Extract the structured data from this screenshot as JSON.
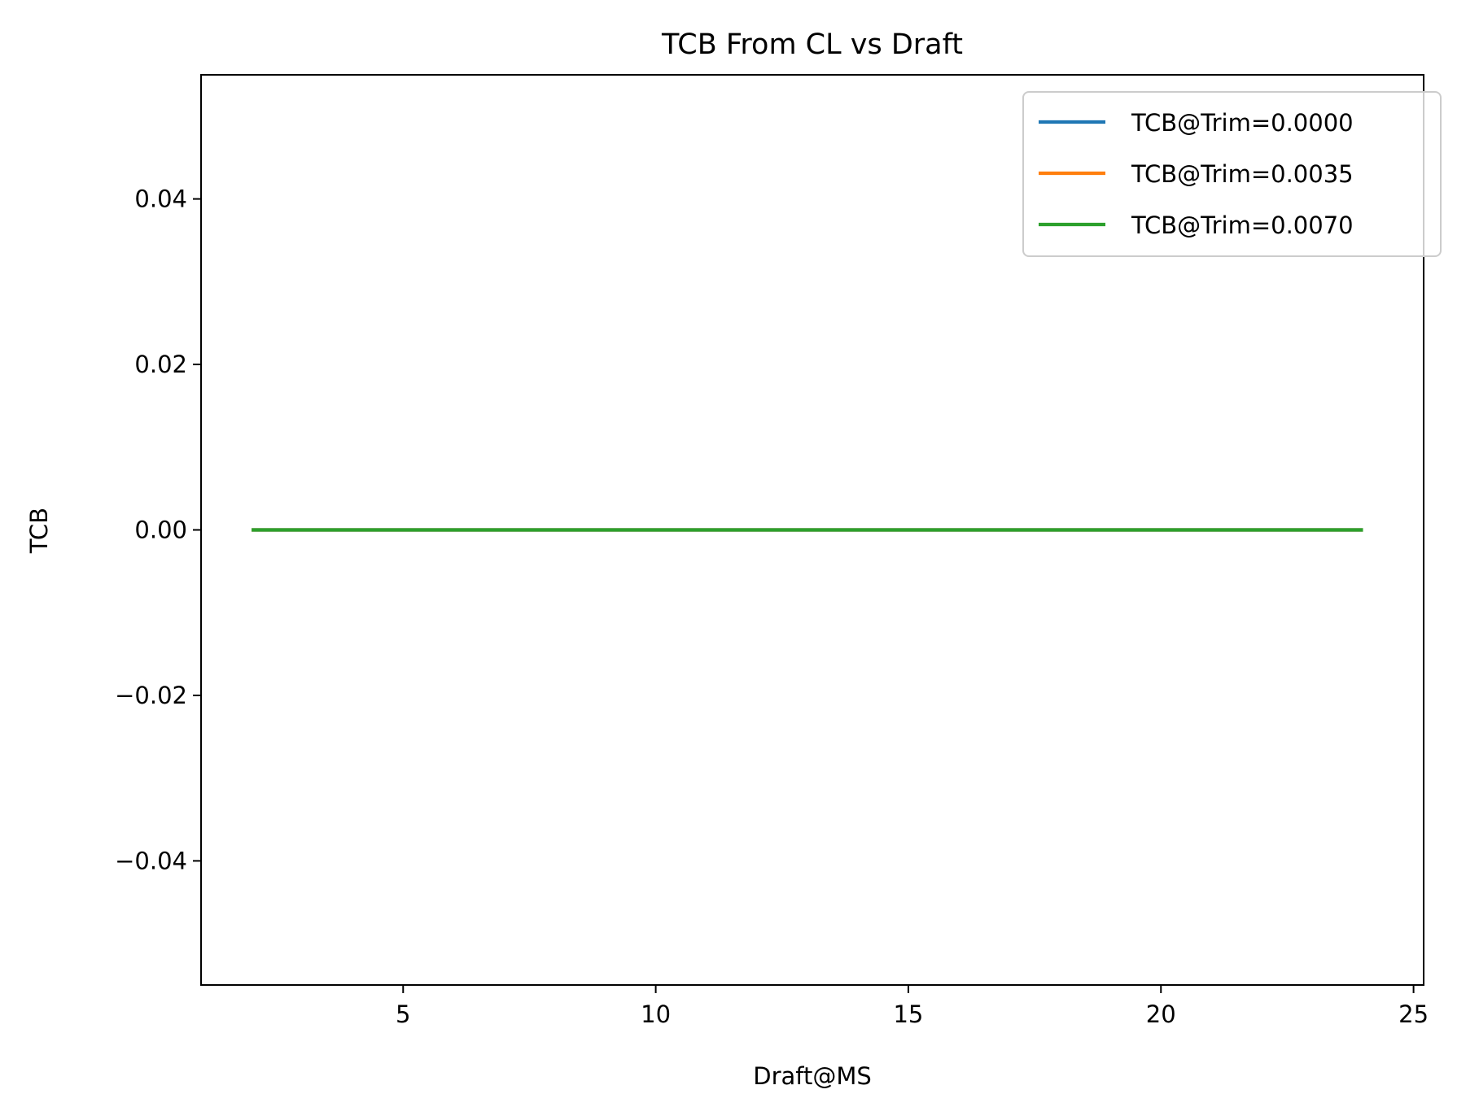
{
  "chart_data": {
    "type": "line",
    "title": "TCB From CL vs Draft",
    "xlabel": "Draft@MS",
    "ylabel": "TCB",
    "xlim": [
      1,
      25.2
    ],
    "ylim": [
      -0.055,
      0.055
    ],
    "xticks": [
      5,
      10,
      15,
      20,
      25
    ],
    "yticks": [
      -0.04,
      -0.02,
      0.0,
      0.02,
      0.04
    ],
    "xtick_labels": [
      "5",
      "10",
      "15",
      "20",
      "25"
    ],
    "ytick_labels": [
      "−0.04",
      "−0.02",
      "0.00",
      "0.02",
      "0.04"
    ],
    "grid": false,
    "legend_position": "top-right",
    "series": [
      {
        "name": "TCB@Trim=0.0000",
        "color": "#1f77b4",
        "x": [
          2,
          24
        ],
        "y": [
          0,
          0
        ]
      },
      {
        "name": "TCB@Trim=0.0035",
        "color": "#ff7f0e",
        "x": [
          2,
          24
        ],
        "y": [
          0,
          0
        ]
      },
      {
        "name": "TCB@Trim=0.0070",
        "color": "#2ca02c",
        "x": [
          2,
          24
        ],
        "y": [
          0,
          0
        ]
      }
    ]
  }
}
